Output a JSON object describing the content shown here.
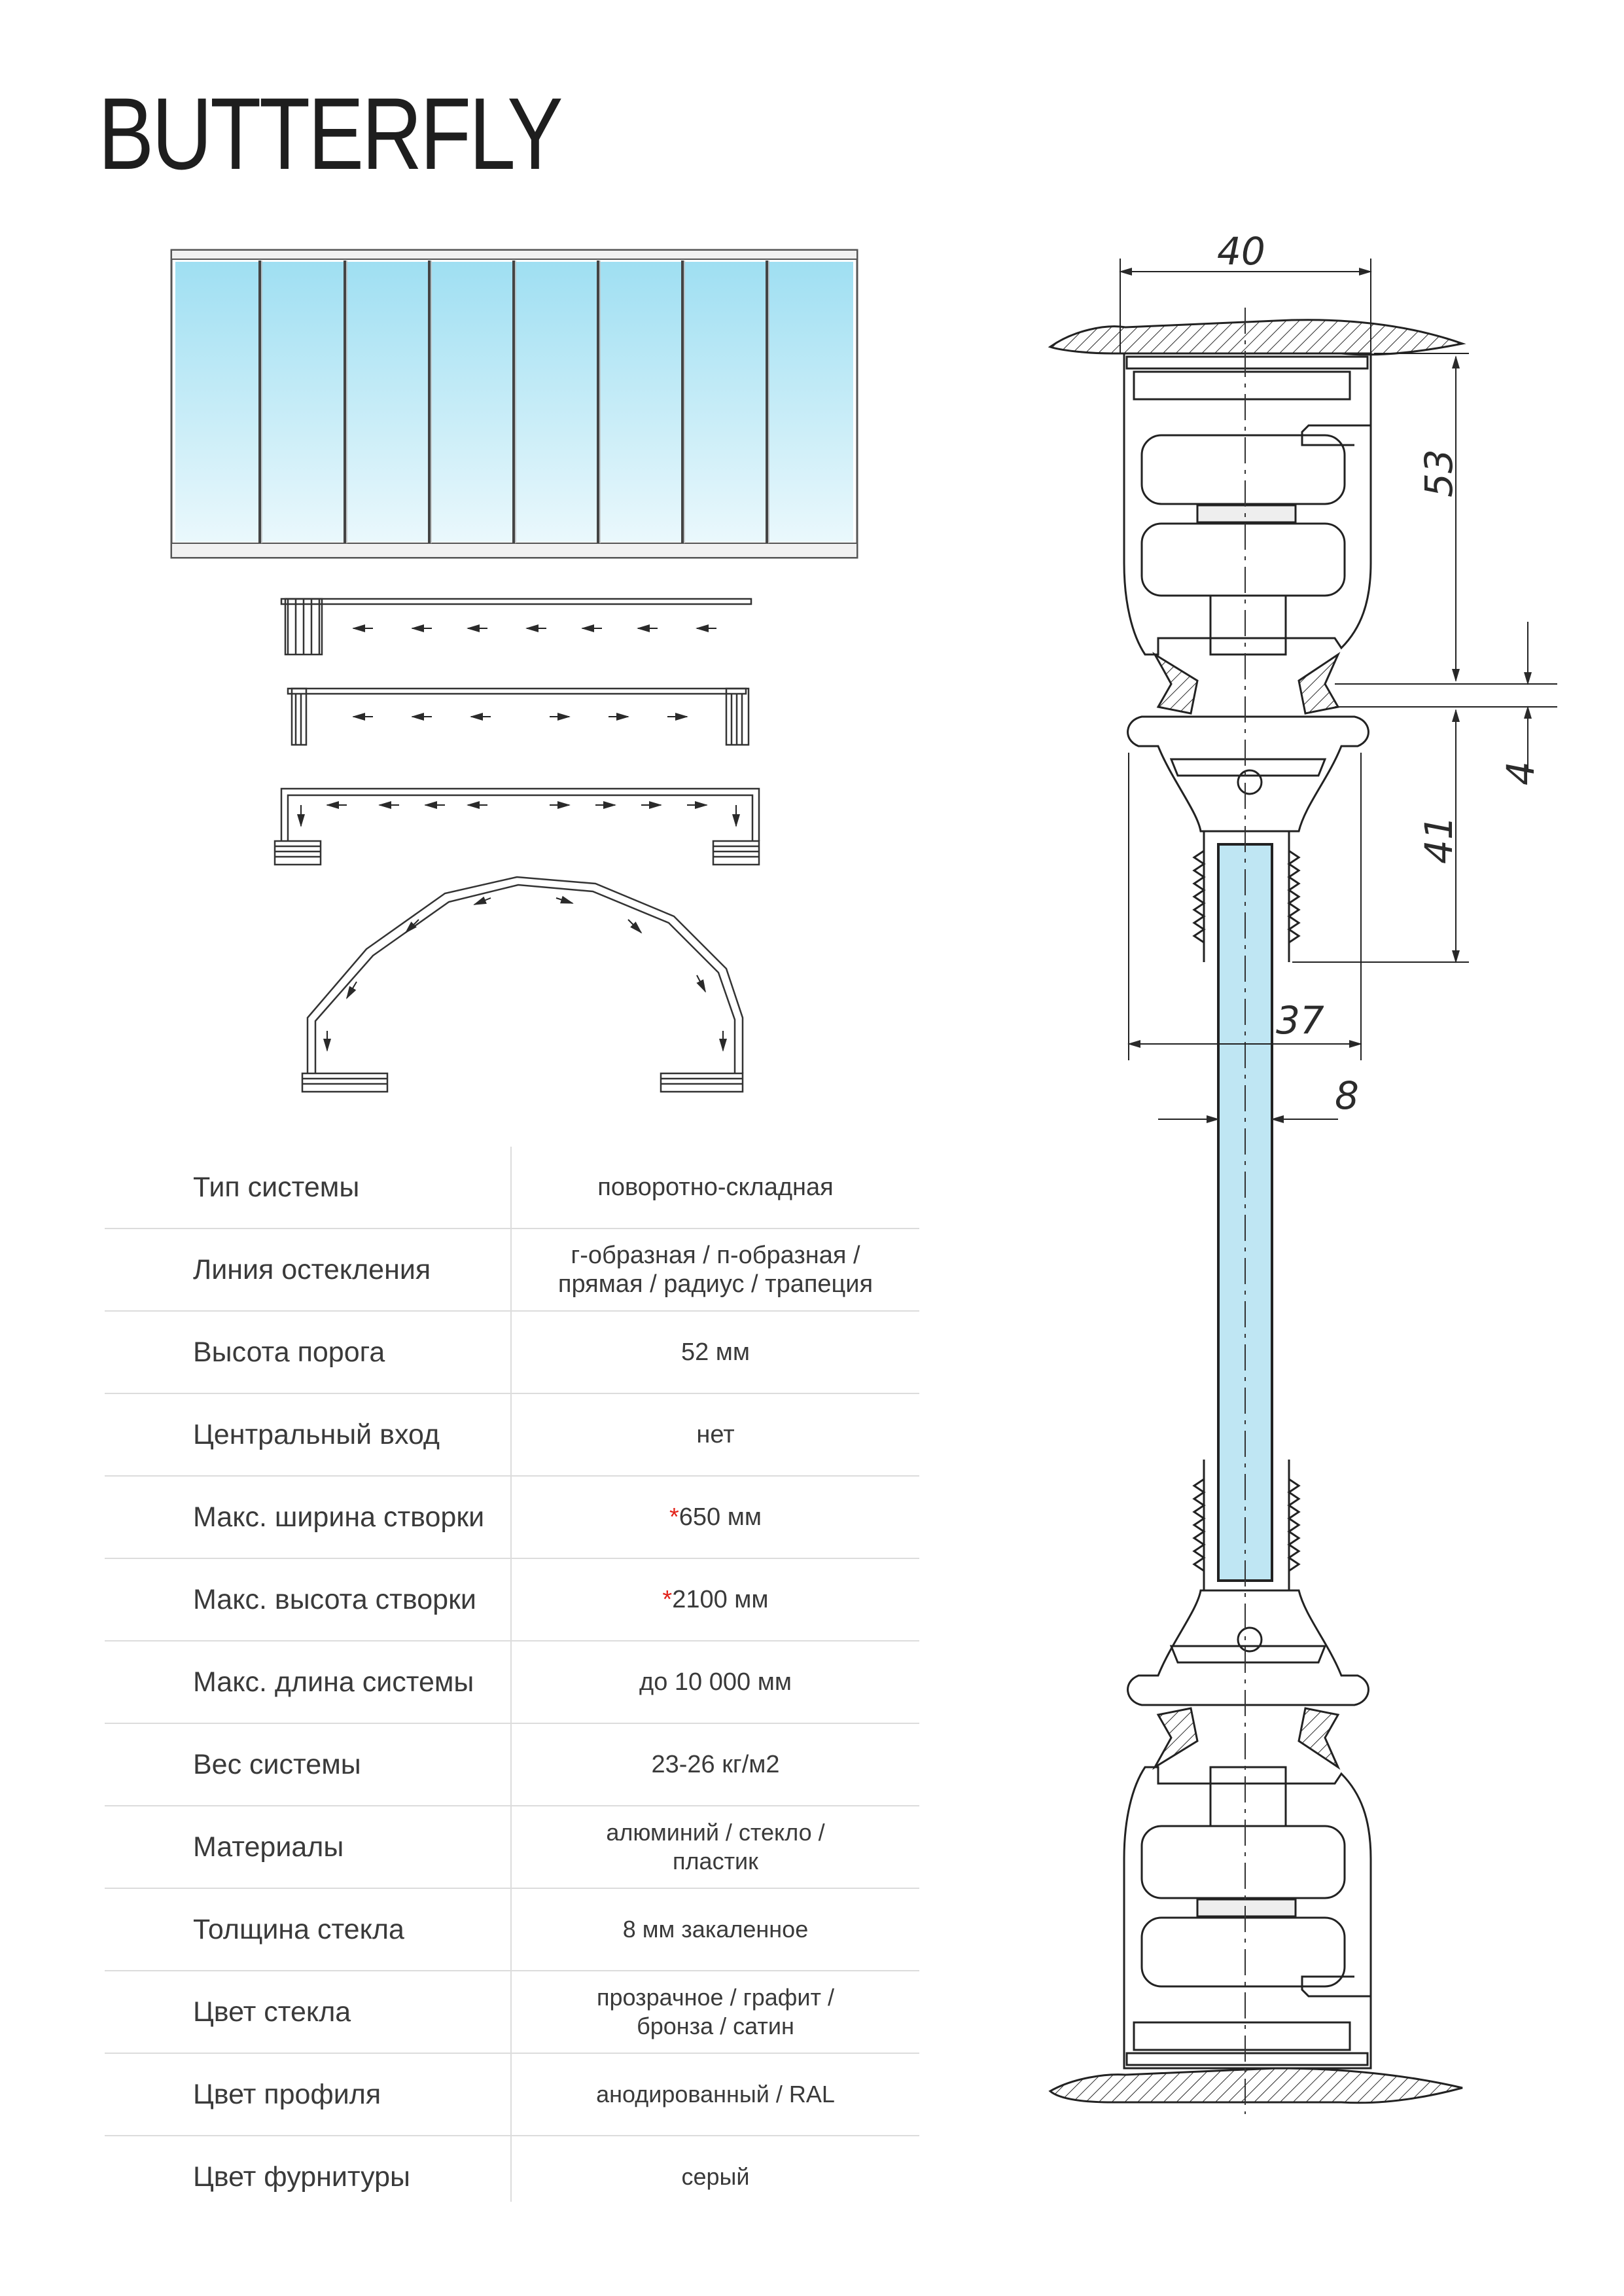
{
  "title": "BUTTERFLY",
  "dimensions": {
    "d40": "40",
    "d53": "53",
    "d4": "4",
    "d41": "41",
    "d37": "37",
    "d8": "8"
  },
  "specs": [
    {
      "label": "Тип системы",
      "value": "поворотно-складная"
    },
    {
      "label": "Линия остекления",
      "value_lines": [
        "г-образная / п-образная /",
        "прямая / радиус / трапеция"
      ]
    },
    {
      "label": "Высота порога",
      "value": "52 мм"
    },
    {
      "label": "Центральный вход",
      "value": "нет"
    },
    {
      "label": "Макс. ширина створки",
      "star": "*",
      "value": "650 мм"
    },
    {
      "label": "Макс. высота створки",
      "star": "*",
      "value": "2100 мм"
    },
    {
      "label": "Макс. длина системы",
      "value": "до 10 000 мм"
    },
    {
      "label": "Вес системы",
      "value": "23-26 кг/м2"
    },
    {
      "label": "Материалы",
      "value_lines": [
        "алюминий / стекло /",
        "пластик"
      ]
    },
    {
      "label": "Толщина стекла",
      "value": "8 мм закаленное"
    },
    {
      "label": "Цвет стекла",
      "value_lines": [
        "прозрачное / графит /",
        "бронза / сатин"
      ]
    },
    {
      "label": "Цвет профиля",
      "value": "анодированный / RAL"
    },
    {
      "label": "Цвет фурнитуры",
      "value": "серый"
    }
  ],
  "colors": {
    "glass": "#bfe6f3",
    "line": "#2a2a2a",
    "star": "#e2231a",
    "divider": "#dcdcdc"
  }
}
